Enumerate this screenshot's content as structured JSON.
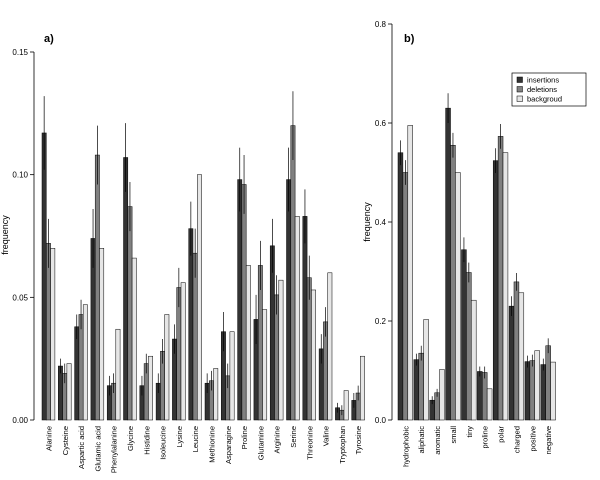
{
  "chart_data": [
    {
      "type": "bar",
      "panel_label": "a)",
      "ylabel": "frequency",
      "ylim": [
        0,
        0.15
      ],
      "yticks": [
        "0.00",
        "0.05",
        "0.10",
        "0.15"
      ],
      "ytick_values": [
        0,
        0.05,
        0.1,
        0.15
      ],
      "categories": [
        "Alanine",
        "Cysteine",
        "Aspartic acid",
        "Glutamic acid",
        "Phenylalanine",
        "Glycine",
        "Histidine",
        "Isoleucine",
        "Lysine",
        "Leucine",
        "Methionine",
        "Asparagine",
        "Proline",
        "Glutamine",
        "Arginine",
        "Serine",
        "Threonine",
        "Valine",
        "Tryptophan",
        "Tyrosine"
      ],
      "series": [
        {
          "name": "insertions",
          "color": "#333333",
          "values": [
            0.117,
            0.022,
            0.038,
            0.074,
            0.014,
            0.107,
            0.014,
            0.015,
            0.033,
            0.078,
            0.015,
            0.036,
            0.098,
            0.041,
            0.071,
            0.098,
            0.083,
            0.029,
            0.005,
            0.008
          ],
          "errors": [
            0.015,
            0.003,
            0.005,
            0.012,
            0.004,
            0.014,
            0.004,
            0.004,
            0.006,
            0.011,
            0.004,
            0.008,
            0.013,
            0.01,
            0.011,
            0.013,
            0.011,
            0.006,
            0.002,
            0.003
          ]
        },
        {
          "name": "deletions",
          "color": "#808080",
          "values": [
            0.072,
            0.019,
            0.043,
            0.108,
            0.015,
            0.087,
            0.023,
            0.028,
            0.054,
            0.068,
            0.016,
            0.018,
            0.096,
            0.063,
            0.051,
            0.12,
            0.058,
            0.04,
            0.004,
            0.011
          ],
          "errors": [
            0.01,
            0.004,
            0.006,
            0.012,
            0.004,
            0.01,
            0.004,
            0.005,
            0.008,
            0.01,
            0.004,
            0.005,
            0.012,
            0.01,
            0.008,
            0.014,
            0.009,
            0.006,
            0.002,
            0.003
          ]
        },
        {
          "name": "backgroud",
          "color": "#e6e6e6",
          "values": [
            0.07,
            0.023,
            0.047,
            0.07,
            0.037,
            0.066,
            0.026,
            0.043,
            0.056,
            0.1,
            0.021,
            0.036,
            0.063,
            0.045,
            0.057,
            0.083,
            0.053,
            0.06,
            0.012,
            0.026
          ]
        }
      ]
    },
    {
      "type": "bar",
      "panel_label": "b)",
      "ylabel": "frequency",
      "ylim": [
        0,
        0.8
      ],
      "yticks": [
        "0.0",
        "0.2",
        "0.4",
        "0.6",
        "0.8"
      ],
      "ytick_values": [
        0,
        0.2,
        0.4,
        0.6,
        0.8
      ],
      "categories": [
        "hydrophobic",
        "aliphatic",
        "aromatic",
        "small",
        "tiny",
        "proline",
        "polar",
        "charged",
        "positive",
        "negative"
      ],
      "legend": {
        "placement": "top-right",
        "entries": [
          "insertions",
          "deletions",
          "backgroud"
        ]
      },
      "series": [
        {
          "name": "insertions",
          "color": "#333333",
          "values": [
            0.54,
            0.122,
            0.04,
            0.63,
            0.344,
            0.098,
            0.524,
            0.23,
            0.118,
            0.112
          ],
          "errors": [
            0.025,
            0.012,
            0.008,
            0.03,
            0.025,
            0.01,
            0.025,
            0.02,
            0.012,
            0.012
          ]
        },
        {
          "name": "deletions",
          "color": "#808080",
          "values": [
            0.5,
            0.135,
            0.055,
            0.555,
            0.298,
            0.096,
            0.573,
            0.279,
            0.12,
            0.15
          ],
          "errors": [
            0.025,
            0.015,
            0.008,
            0.025,
            0.02,
            0.012,
            0.025,
            0.018,
            0.012,
            0.015
          ]
        },
        {
          "name": "backgroud",
          "color": "#e6e6e6",
          "values": [
            0.595,
            0.203,
            0.102,
            0.5,
            0.242,
            0.063,
            0.54,
            0.257,
            0.14,
            0.117
          ]
        }
      ]
    }
  ]
}
